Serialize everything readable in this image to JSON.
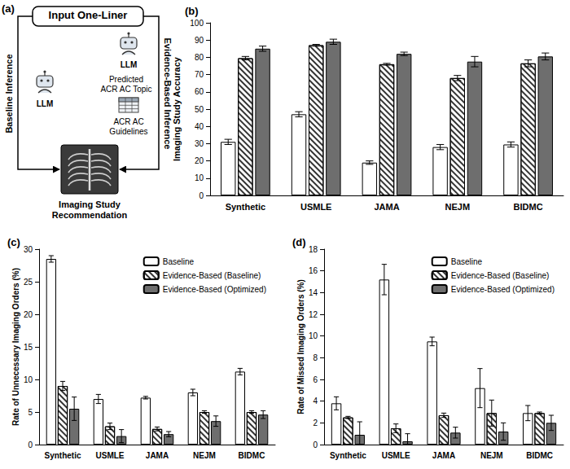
{
  "diagram": {
    "panel": "(a)",
    "input": "Input One-Liner",
    "baseline_path": "Baseline Inference",
    "evidence_path": "Evidence-Based Inference",
    "model": "LLM",
    "topic": "Predicted ACR AC Topic",
    "guidelines": "ACR AC Guidelines",
    "output": "Imaging Study Recommendation"
  },
  "chart_data": [
    {
      "panel": "(b)",
      "type": "bar",
      "categories": [
        "Synthetic",
        "USMLE",
        "JAMA",
        "NEJM",
        "BIDMC"
      ],
      "ylabel": "Imaging Study Accuracy",
      "ylim": [
        0,
        100
      ],
      "yticks": [
        0,
        10,
        20,
        30,
        40,
        50,
        60,
        70,
        80,
        90,
        100
      ],
      "grid": false,
      "series": [
        {
          "name": "Baseline",
          "color": "#ffffff",
          "values": [
            31,
            47,
            19,
            28,
            29.5
          ],
          "errors": [
            1.5,
            1.5,
            1,
            1.5,
            1.5
          ]
        },
        {
          "name": "Evidence-Based (Baseline)",
          "color": "#ffffff",
          "marker": "hatch",
          "values": [
            79.5,
            87,
            76,
            68,
            76.5
          ],
          "errors": [
            1,
            0.5,
            0.5,
            1.5,
            2
          ]
        },
        {
          "name": "Evidence-Based (Optimized)",
          "color": "#6e6e6e",
          "values": [
            85,
            89,
            82,
            77.5,
            80.5
          ],
          "errors": [
            1.5,
            1.5,
            1,
            3,
            2
          ]
        }
      ]
    },
    {
      "panel": "(c)",
      "type": "bar",
      "categories": [
        "Synthetic",
        "USMLE",
        "JAMA",
        "NEJM",
        "BIDMC"
      ],
      "ylabel": "Rate of Unnecessary Imaging Orders (%)",
      "ylim": [
        0,
        30
      ],
      "yticks": [
        0,
        5,
        10,
        15,
        20,
        25,
        30
      ],
      "grid": false,
      "legend": "upper right",
      "series": [
        {
          "name": "Baseline",
          "color": "#ffffff",
          "values": [
            28.5,
            7,
            7.2,
            8,
            11.2
          ],
          "errors": [
            0.5,
            0.7,
            0.2,
            0.5,
            0.5
          ]
        },
        {
          "name": "Evidence-Based (Baseline)",
          "color": "#ffffff",
          "marker": "hatch",
          "values": [
            9,
            2.8,
            2.4,
            5,
            5
          ],
          "errors": [
            0.7,
            0.5,
            0.3,
            0.2,
            0.2
          ]
        },
        {
          "name": "Evidence-Based (Optimized)",
          "color": "#6e6e6e",
          "values": [
            5.5,
            1.3,
            1.6,
            3.6,
            4.6
          ],
          "errors": [
            1.8,
            1,
            0.4,
            0.8,
            0.6
          ]
        }
      ]
    },
    {
      "panel": "(d)",
      "type": "bar",
      "categories": [
        "Synthetic",
        "USMLE",
        "JAMA",
        "NEJM",
        "BIDMC"
      ],
      "ylabel": "Rate of Missed Imaging Orders (%)",
      "ylim": [
        0,
        18
      ],
      "yticks": [
        0,
        2,
        4,
        6,
        8,
        10,
        12,
        14,
        16,
        18
      ],
      "grid": false,
      "legend": "upper right",
      "series": [
        {
          "name": "Baseline",
          "color": "#ffffff",
          "values": [
            3.8,
            15.2,
            9.5,
            5.2,
            2.9
          ],
          "errors": [
            0.6,
            1.4,
            0.4,
            1.8,
            0.7
          ]
        },
        {
          "name": "Evidence-Based (Baseline)",
          "color": "#ffffff",
          "marker": "hatch",
          "values": [
            2.5,
            1.5,
            2.7,
            2.9,
            2.9
          ],
          "errors": [
            0.1,
            0.4,
            0.2,
            1.2,
            0.1
          ]
        },
        {
          "name": "Evidence-Based (Optimized)",
          "color": "#6e6e6e",
          "values": [
            0.9,
            0.3,
            1.1,
            1.2,
            2.0
          ],
          "errors": [
            1.2,
            0.7,
            0.5,
            0.8,
            0.7
          ]
        }
      ]
    }
  ]
}
